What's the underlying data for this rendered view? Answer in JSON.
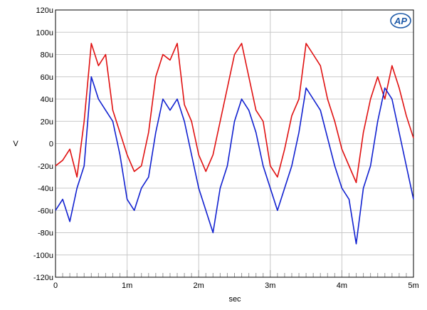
{
  "chart_data": {
    "type": "line",
    "title": "",
    "xlabel": "sec",
    "ylabel": "V",
    "xlim": [
      0,
      0.005
    ],
    "ylim": [
      -0.00012,
      0.00012
    ],
    "grid": true,
    "x_ticks": [
      {
        "value": 0,
        "label": "0"
      },
      {
        "value": 0.001,
        "label": "1m"
      },
      {
        "value": 0.002,
        "label": "2m"
      },
      {
        "value": 0.003,
        "label": "3m"
      },
      {
        "value": 0.004,
        "label": "4m"
      },
      {
        "value": 0.005,
        "label": "5m"
      }
    ],
    "y_ticks": [
      {
        "value": 0.00012,
        "label": "120u"
      },
      {
        "value": 0.0001,
        "label": "100u"
      },
      {
        "value": 8e-05,
        "label": "80u"
      },
      {
        "value": 6e-05,
        "label": "60u"
      },
      {
        "value": 4e-05,
        "label": "40u"
      },
      {
        "value": 2e-05,
        "label": "20u"
      },
      {
        "value": 0,
        "label": "0"
      },
      {
        "value": -2e-05,
        "label": "-20u"
      },
      {
        "value": -4e-05,
        "label": "-40u"
      },
      {
        "value": -6e-05,
        "label": "-60u"
      },
      {
        "value": -8e-05,
        "label": "-80u"
      },
      {
        "value": -0.0001,
        "label": "-100u"
      },
      {
        "value": -0.00012,
        "label": "-120u"
      }
    ],
    "x": [
      0,
      0.0001,
      0.0002,
      0.0003,
      0.0004,
      0.0005,
      0.0006,
      0.0007,
      0.0008,
      0.0009,
      0.001,
      0.0011,
      0.0012,
      0.0013,
      0.0014,
      0.0015,
      0.0016,
      0.0017,
      0.0018,
      0.0019,
      0.002,
      0.0021,
      0.0022,
      0.0023,
      0.0024,
      0.0025,
      0.0026,
      0.0027,
      0.0028,
      0.0029,
      0.003,
      0.0031,
      0.0032,
      0.0033,
      0.0034,
      0.0035,
      0.0036,
      0.0037,
      0.0038,
      0.0039,
      0.004,
      0.0041,
      0.0042,
      0.0043,
      0.0044,
      0.0045,
      0.0046,
      0.0047,
      0.0048,
      0.0049,
      0.005
    ],
    "series": [
      {
        "color": "#e01010",
        "values": [
          -2e-05,
          -1.5e-05,
          -5e-06,
          -3e-05,
          2e-05,
          9e-05,
          7e-05,
          8e-05,
          3e-05,
          1e-05,
          -1e-05,
          -2.5e-05,
          -2e-05,
          1e-05,
          6e-05,
          8e-05,
          7.5e-05,
          9e-05,
          3.5e-05,
          2e-05,
          -1e-05,
          -2.5e-05,
          -1e-05,
          2e-05,
          5e-05,
          8e-05,
          9e-05,
          6e-05,
          3e-05,
          2e-05,
          -2e-05,
          -3e-05,
          -5e-06,
          2.5e-05,
          4e-05,
          9e-05,
          8e-05,
          7e-05,
          4e-05,
          2e-05,
          -5e-06,
          -2e-05,
          -3.5e-05,
          1e-05,
          4e-05,
          6e-05,
          4e-05,
          7e-05,
          5e-05,
          2.5e-05,
          5e-06
        ]
      },
      {
        "color": "#1020d0",
        "values": [
          -6e-05,
          -5e-05,
          -7e-05,
          -4e-05,
          -2e-05,
          6e-05,
          4e-05,
          3e-05,
          2e-05,
          -1e-05,
          -5e-05,
          -6e-05,
          -4e-05,
          -3e-05,
          1e-05,
          4e-05,
          3e-05,
          4e-05,
          2e-05,
          -1e-05,
          -4e-05,
          -6e-05,
          -8e-05,
          -4e-05,
          -2e-05,
          2e-05,
          4e-05,
          3e-05,
          1e-05,
          -2e-05,
          -4e-05,
          -6e-05,
          -4e-05,
          -2e-05,
          1e-05,
          5e-05,
          4e-05,
          3e-05,
          5e-06,
          -2e-05,
          -4e-05,
          -5e-05,
          -9e-05,
          -4e-05,
          -2e-05,
          2e-05,
          5e-05,
          4e-05,
          1e-05,
          -2e-05,
          -5e-05
        ]
      }
    ]
  },
  "logo": {
    "text": "AP",
    "color": "#1e5aa8"
  }
}
